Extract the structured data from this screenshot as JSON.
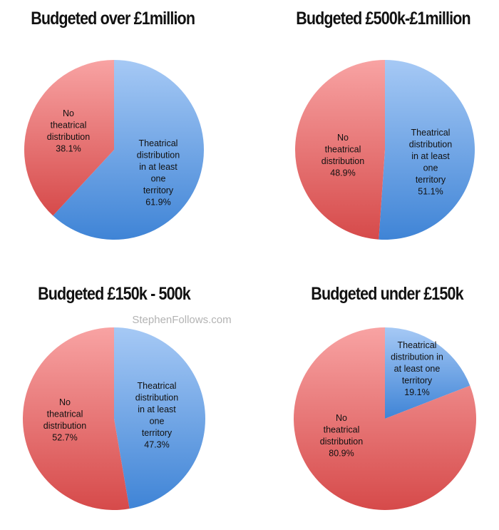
{
  "watermark": "StephenFollows.com",
  "colors": {
    "blue_light": "#a6c9f5",
    "blue_dark": "#3f84d6",
    "red_light": "#f8a3a3",
    "red_dark": "#d64a4a"
  },
  "chart_data": [
    {
      "type": "pie",
      "title": "Budgeted over £1million",
      "slices": [
        {
          "label": [
            "Theatrical",
            "distribution",
            "in at least",
            "one",
            "territory"
          ],
          "value": 61.9,
          "value_label": "61.9%",
          "color": "blue"
        },
        {
          "label": [
            "No",
            "theatrical",
            "distribution"
          ],
          "value": 38.1,
          "value_label": "38.1%",
          "color": "red"
        }
      ]
    },
    {
      "type": "pie",
      "title": "Budgeted £500k-£1million",
      "slices": [
        {
          "label": [
            "Theatrical",
            "distribution",
            "in at least",
            "one",
            "territory"
          ],
          "value": 51.1,
          "value_label": "51.1%",
          "color": "blue"
        },
        {
          "label": [
            "No",
            "theatrical",
            "distribution"
          ],
          "value": 48.9,
          "value_label": "48.9%",
          "color": "red"
        }
      ]
    },
    {
      "type": "pie",
      "title": "Budgeted £150k - 500k",
      "slices": [
        {
          "label": [
            "Theatrical",
            "distribution",
            "in at least",
            "one",
            "territory"
          ],
          "value": 47.3,
          "value_label": "47.3%",
          "color": "blue"
        },
        {
          "label": [
            "No",
            "theatrical",
            "distribution"
          ],
          "value": 52.7,
          "value_label": "52.7%",
          "color": "red"
        }
      ]
    },
    {
      "type": "pie",
      "title": "Budgeted under £150k",
      "slices": [
        {
          "label": [
            "Theatrical",
            "distribution in",
            "at least one",
            "territory"
          ],
          "value": 19.1,
          "value_label": "19.1%",
          "color": "blue"
        },
        {
          "label": [
            "No",
            "theatrical",
            "distribution"
          ],
          "value": 80.9,
          "value_label": "80.9%",
          "color": "red"
        }
      ]
    }
  ]
}
